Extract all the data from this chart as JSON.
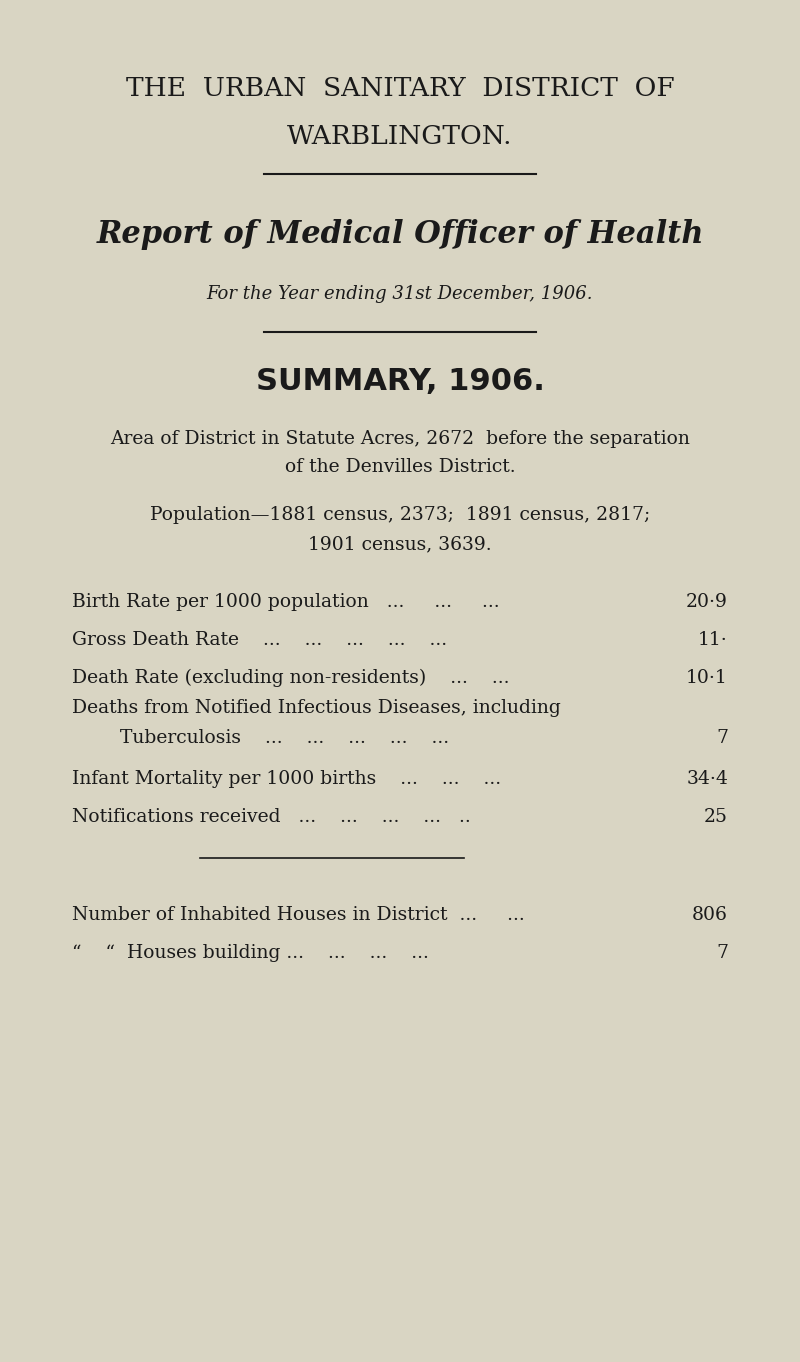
{
  "bg_color": "#d9d5c3",
  "text_color": "#1a1a1a",
  "title_line1": "THE  URBAN  SANITARY  DISTRICT  OF",
  "title_line2": "WARBLINGTON.",
  "gothic_title": "Report of Medical Officer of Health",
  "subtitle": "For the Year ending 31st December, 1906.",
  "summary_heading": "SUMMARY, 1906.",
  "area_text_line1": "Area of District in Statute Acres, 2672  before the separation",
  "area_text_line2": "of the Denvilles District.",
  "pop_text_line1": "Population—1881 census, 2373;  1891 census, 2817;",
  "pop_text_line2": "1901 census, 3639.",
  "stats": [
    {
      "label": "Birth Rate per 1000 population   ...     ...     ...  ",
      "value": "20·9"
    },
    {
      "label": "Gross Death Rate    ...    ...    ...    ...    ...  ",
      "value": "11·"
    },
    {
      "label": "Death Rate (excluding non-residents)    ...    ...  ",
      "value": "10·1"
    },
    {
      "label": "Deaths from Notified Infectious Diseases, including\n        Tuberculosis    ...    ...    ...    ...    ...  ",
      "value": "7"
    },
    {
      "label": "Infant Mortality per 1000 births    ...    ...    ...  ",
      "value": "34·4"
    },
    {
      "label": "Notifications received   ...    ...    ...    ...   .. ",
      "value": "25"
    }
  ],
  "houses": [
    {
      "label": "Number of Inhabited Houses in District  ...    ...  ",
      "value": "806"
    },
    {
      "“”": "“”",
      "label": "“    “  Houses building ...    ...    ...    ...  ",
      "value": "7"
    }
  ]
}
